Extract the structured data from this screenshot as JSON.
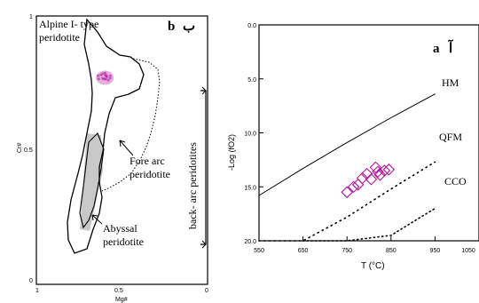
{
  "chart_data": [
    {
      "panel": "b",
      "panel_label": "b",
      "panel_label_alt": "ب",
      "type": "area",
      "xlabel": "Mg#",
      "ylabel": "Cr#",
      "xlim": [
        1,
        0
      ],
      "ylim": [
        0,
        1
      ],
      "x_ticks": [
        "1",
        "0.5",
        "0"
      ],
      "y_ticks": [
        "1",
        "0.5",
        "0"
      ],
      "fields": [
        {
          "name": "Alpine I- type peridotite",
          "lines": [
            "Alpine I- type",
            "peridotite"
          ]
        },
        {
          "name": "Fore arc peridotite",
          "lines": [
            "Fore arc",
            "peridotite"
          ]
        },
        {
          "name": "Abyssal peridotite",
          "lines": [
            "Abyssal",
            "peridotite"
          ]
        },
        {
          "name": "back- arc peridotites",
          "lines": [
            "back- arc peridotites"
          ]
        }
      ],
      "samples": {
        "mg": 0.6,
        "cr": 0.77
      }
    },
    {
      "panel": "a",
      "panel_label": "a",
      "panel_label_alt": "آ",
      "type": "scatter",
      "xlabel": "T (°C)",
      "ylabel": "-Log (fO2)",
      "xlim": [
        550,
        1050
      ],
      "ylim": [
        0,
        20
      ],
      "x_ticks": [
        "550",
        "650",
        "750",
        "850",
        "950",
        "1050"
      ],
      "y_ticks": [
        "0.0",
        "5.0",
        "10.0",
        "15.0",
        "20.0"
      ],
      "buffers": [
        {
          "name": "HM",
          "label": "HM",
          "x": [
            550,
            650,
            750,
            850,
            950
          ],
          "y": [
            15.8,
            13.3,
            10.9,
            8.6,
            6.4
          ]
        },
        {
          "name": "QFM",
          "label": "QFM",
          "x": [
            550,
            650,
            750,
            850,
            950
          ],
          "y": [
            23.4,
            20.6,
            17.8,
            15.2,
            12.7
          ]
        },
        {
          "name": "CCO",
          "label": "CCO",
          "x": [
            650,
            750,
            850,
            950
          ],
          "y": [
            25.0,
            22.0,
            19.5,
            17.0
          ]
        }
      ],
      "series": [
        {
          "x": [
            750,
            765,
            775,
            785,
            795,
            805,
            815,
            820,
            825,
            835,
            845
          ],
          "y": [
            15.5,
            15.0,
            14.8,
            14.2,
            13.8,
            14.3,
            13.2,
            13.6,
            13.9,
            13.5,
            13.4
          ]
        }
      ]
    }
  ]
}
